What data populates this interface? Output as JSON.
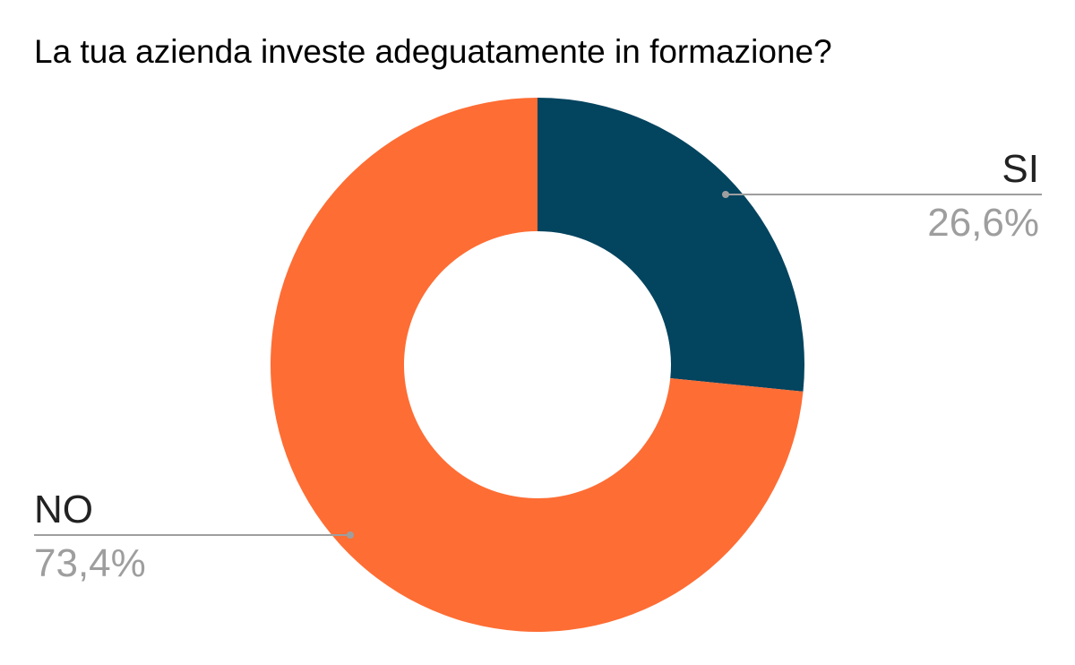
{
  "chart_data": {
    "type": "pie",
    "title": "La tua azienda investe adeguatamente in formazione?",
    "donut": true,
    "labels": [
      "SI",
      "NO"
    ],
    "values": [
      26.6,
      73.4
    ],
    "value_labels": [
      "26,6%",
      "73,4%"
    ],
    "colors": [
      "#03445f",
      "#fe6d34"
    ],
    "leader_line_color": "#9e9e9e",
    "label_text_color": "#222222",
    "value_text_color": "#9e9e9e"
  }
}
